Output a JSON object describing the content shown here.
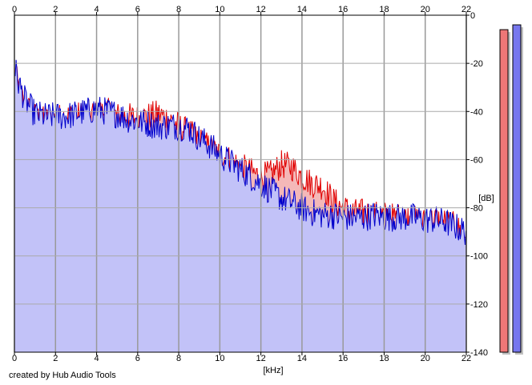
{
  "chart_data": {
    "type": "area",
    "title": "",
    "xlabel": "[kHz]",
    "ylabel": "[dB]",
    "xlim": [
      0,
      22
    ],
    "ylim": [
      -140,
      0
    ],
    "x_ticks": [
      "0",
      "2",
      "4",
      "6",
      "8",
      "10",
      "12",
      "14",
      "16",
      "18",
      "20",
      "22"
    ],
    "y_ticks": [
      "0",
      "-20",
      "-40",
      "-60",
      "-80",
      "-100",
      "-120",
      "-140"
    ],
    "grid": true,
    "series": [
      {
        "color": "#e00000",
        "fill": "#f4b8b8",
        "x": [
          0,
          0.2,
          0.5,
          1,
          1.5,
          2,
          2.5,
          3,
          3.5,
          4,
          4.5,
          5,
          5.5,
          6,
          6.5,
          7,
          7.5,
          8,
          8.5,
          9,
          9.5,
          10,
          10.5,
          11,
          11.5,
          12,
          12.5,
          13,
          13.5,
          14,
          14.5,
          15,
          15.5,
          16,
          16.5,
          17,
          17.5,
          18,
          18.5,
          19,
          19.5,
          20,
          20.5,
          21,
          21.5,
          22
        ],
        "values": [
          -23,
          -30,
          -37,
          -42,
          -44,
          -43,
          -42,
          -42,
          -41,
          -41,
          -40,
          -42,
          -42,
          -43,
          -42,
          -41,
          -43,
          -46,
          -49,
          -52,
          -55,
          -58,
          -60,
          -63,
          -65,
          -67,
          -66,
          -62,
          -63,
          -67,
          -70,
          -71,
          -77,
          -80,
          -82,
          -82,
          -83,
          -83,
          -84,
          -84,
          -85,
          -86,
          -85,
          -86,
          -88,
          -92
        ]
      },
      {
        "color": "#0000cc",
        "fill": "#c2c2f8",
        "x": [
          0,
          0.2,
          0.5,
          1,
          1.5,
          2,
          2.5,
          3,
          3.5,
          4,
          4.5,
          5,
          5.5,
          6,
          6.5,
          7,
          7.5,
          8,
          8.5,
          9,
          9.5,
          10,
          10.5,
          11,
          11.5,
          12,
          12.5,
          13,
          13.5,
          14,
          14.5,
          15,
          15.5,
          16,
          16.5,
          17,
          17.5,
          18,
          18.5,
          19,
          19.5,
          20,
          20.5,
          21,
          21.5,
          22
        ],
        "values": [
          -21,
          -28,
          -35,
          -41,
          -42,
          -42,
          -42,
          -41,
          -40,
          -39,
          -40,
          -41,
          -43,
          -44,
          -45,
          -46,
          -46,
          -46,
          -47,
          -51,
          -54,
          -58,
          -61,
          -64,
          -67,
          -70,
          -73,
          -76,
          -78,
          -80,
          -82,
          -83,
          -83,
          -84,
          -84,
          -84,
          -83,
          -84,
          -84,
          -84,
          -84,
          -85,
          -85,
          -86,
          -88,
          -90
        ]
      }
    ]
  },
  "meters": [
    {
      "color": "#ee7777",
      "level_db": -6
    },
    {
      "color": "#7777ee",
      "level_db": -4
    }
  ],
  "credit": "created by Hub Audio Tools"
}
